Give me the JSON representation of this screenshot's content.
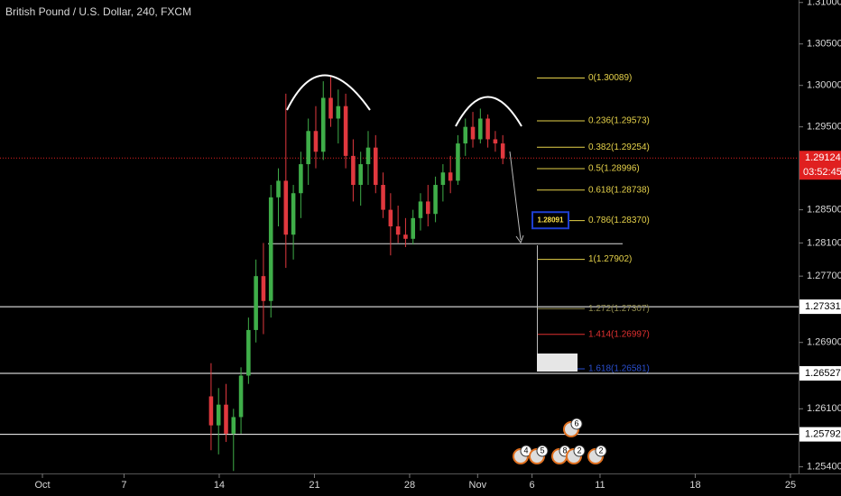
{
  "chart_data": {
    "type": "candlestick",
    "title": "British Pound / U.S. Dollar, 240, FXCM",
    "up_color": "#3fae49",
    "down_color": "#e0383e",
    "ylim": [
      1.2532,
      1.3103
    ],
    "yticks": [
      {
        "value": 1.31,
        "label": "1.31000"
      },
      {
        "value": 1.305,
        "label": "1.30500"
      },
      {
        "value": 1.3,
        "label": "1.30000"
      },
      {
        "value": 1.295,
        "label": "1.29500"
      },
      {
        "value": 1.285,
        "label": "1.28500"
      },
      {
        "value": 1.281,
        "label": "1.28100"
      },
      {
        "value": 1.277,
        "label": "1.27700"
      },
      {
        "value": 1.269,
        "label": "1.26900"
      },
      {
        "value": 1.261,
        "label": "1.26100"
      },
      {
        "value": 1.254,
        "label": "1.25400"
      }
    ],
    "xlim": [
      -3.12,
      55.6
    ],
    "xticks": [
      {
        "value": 0,
        "label": "Oct"
      },
      {
        "value": 6,
        "label": "7"
      },
      {
        "value": 13,
        "label": "14"
      },
      {
        "value": 20,
        "label": "21"
      },
      {
        "value": 27,
        "label": "28"
      },
      {
        "value": 32,
        "label": "Nov"
      },
      {
        "value": 36,
        "label": "6"
      },
      {
        "value": 41,
        "label": "11"
      },
      {
        "value": 48,
        "label": "18"
      },
      {
        "value": 55,
        "label": "25"
      }
    ],
    "x": [
      12.4,
      12.95,
      13.5,
      14.05,
      14.6,
      15.15,
      15.7,
      16.25,
      16.8,
      17.35,
      17.9,
      18.45,
      19.0,
      19.55,
      20.1,
      20.65,
      21.2,
      21.75,
      22.3,
      22.85,
      23.4,
      23.95,
      24.5,
      25.05,
      25.6,
      26.15,
      26.7,
      27.25,
      27.8,
      28.35,
      28.9,
      29.45,
      30.0,
      30.55,
      31.1,
      31.65,
      32.2,
      32.75,
      33.3,
      33.85
    ],
    "open": [
      1.2625,
      1.259,
      1.2615,
      1.258,
      1.26,
      1.265,
      1.2705,
      1.277,
      1.274,
      1.2865,
      1.2885,
      1.282,
      1.287,
      1.2905,
      1.2945,
      1.292,
      1.2985,
      1.296,
      1.2975,
      1.2915,
      1.288,
      1.2905,
      1.2925,
      1.288,
      1.285,
      1.283,
      1.282,
      1.2815,
      1.284,
      1.286,
      1.2845,
      1.288,
      1.2895,
      1.2885,
      1.293,
      1.295,
      1.2935,
      1.296,
      1.2935,
      1.293
    ],
    "high": [
      1.2665,
      1.2635,
      1.264,
      1.261,
      1.266,
      1.272,
      1.279,
      1.281,
      1.288,
      1.29,
      1.299,
      1.288,
      1.292,
      1.296,
      1.2975,
      1.3005,
      1.3012,
      1.2995,
      1.299,
      1.2935,
      1.292,
      1.2945,
      1.294,
      1.2895,
      1.287,
      1.2855,
      1.284,
      1.285,
      1.287,
      1.288,
      1.289,
      1.2905,
      1.2915,
      1.294,
      1.296,
      1.2968,
      1.2972,
      1.2965,
      1.2945,
      1.294
    ],
    "low": [
      1.256,
      1.2555,
      1.257,
      1.2535,
      1.258,
      1.264,
      1.269,
      1.27,
      1.272,
      1.283,
      1.278,
      1.279,
      1.284,
      1.288,
      1.29,
      1.291,
      1.295,
      1.293,
      1.29,
      1.286,
      1.2855,
      1.288,
      1.287,
      1.284,
      1.2795,
      1.281,
      1.2805,
      1.2808,
      1.2825,
      1.283,
      1.2835,
      1.286,
      1.287,
      1.288,
      1.2915,
      1.2925,
      1.293,
      1.2925,
      1.292,
      1.2905
    ],
    "close": [
      1.259,
      1.2615,
      1.258,
      1.26,
      1.265,
      1.2705,
      1.277,
      1.274,
      1.2865,
      1.2885,
      1.282,
      1.287,
      1.2905,
      1.2945,
      1.292,
      1.2985,
      1.296,
      1.2975,
      1.2915,
      1.288,
      1.2905,
      1.2925,
      1.288,
      1.285,
      1.283,
      1.282,
      1.2815,
      1.284,
      1.286,
      1.2845,
      1.288,
      1.2895,
      1.2885,
      1.293,
      1.295,
      1.2935,
      1.296,
      1.2935,
      1.293,
      1.2912
    ],
    "fib_levels": [
      {
        "value": 1.30089,
        "label": "0(1.30089)",
        "color": "#e6d24a"
      },
      {
        "value": 1.29573,
        "label": "0.236(1.29573)",
        "color": "#e6d24a"
      },
      {
        "value": 1.29254,
        "label": "0.382(1.29254)",
        "color": "#e6d24a"
      },
      {
        "value": 1.28996,
        "label": "0.5(1.28996)",
        "color": "#e6d24a"
      },
      {
        "value": 1.28738,
        "label": "0.618(1.28738)",
        "color": "#e6d24a"
      },
      {
        "value": 1.2837,
        "label": "0.786(1.28370)",
        "color": "#e6d24a"
      },
      {
        "value": 1.27902,
        "label": "1(1.27902)",
        "color": "#e6d24a"
      },
      {
        "value": 1.27307,
        "label": "1.272(1.27307)",
        "color": "#8f8a4e"
      },
      {
        "value": 1.26997,
        "label": "1.414(1.26997)",
        "color": "#e03030"
      },
      {
        "value": 1.26581,
        "label": "1.618(1.26581)",
        "color": "#2a4fd0"
      }
    ],
    "levels": [
      {
        "value": 1.27331,
        "label": "1.27331"
      },
      {
        "value": 1.26527,
        "label": "1.26527"
      },
      {
        "value": 1.25792,
        "label": "1.25792"
      }
    ],
    "neckline": {
      "value": 1.28091,
      "label": "1.28091"
    },
    "current_price": {
      "value": 1.29124,
      "label": "1.29124",
      "countdown": "03:52:45"
    },
    "events": [
      "4",
      "5",
      "8",
      "2",
      "2",
      "6"
    ]
  }
}
